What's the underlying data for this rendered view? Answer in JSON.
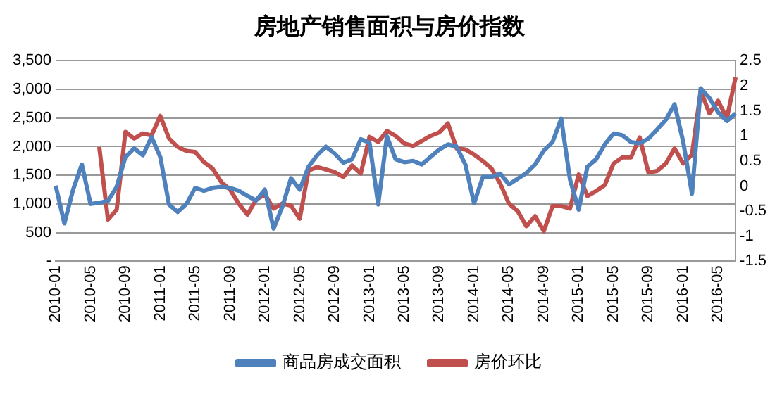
{
  "chart_data": {
    "type": "line",
    "title": "房地产销售面积与房价指数",
    "categories": [
      "2010-01",
      null,
      null,
      null,
      "2010-05",
      null,
      null,
      null,
      "2010-09",
      null,
      null,
      null,
      "2011-01",
      null,
      null,
      null,
      "2011-05",
      null,
      null,
      null,
      "2011-09",
      null,
      null,
      null,
      "2012-01",
      null,
      null,
      null,
      "2012-05",
      null,
      null,
      null,
      "2012-09",
      null,
      null,
      null,
      "2013-01",
      null,
      null,
      null,
      "2013-05",
      null,
      null,
      null,
      "2013-09",
      null,
      null,
      null,
      "2014-01",
      null,
      null,
      null,
      "2014-05",
      null,
      null,
      null,
      "2014-09",
      null,
      null,
      null,
      "2015-01",
      null,
      null,
      null,
      "2015-05",
      null,
      null,
      null,
      "2015-09",
      null,
      null,
      null,
      "2016-01",
      null,
      null,
      null,
      "2016-05",
      null,
      null
    ],
    "series": [
      {
        "name": "商品房成交面积",
        "color": "#4f81bd",
        "values": [
          1320,
          660,
          1250,
          1690,
          1000,
          1020,
          1050,
          1300,
          1820,
          1970,
          1850,
          2170,
          1820,
          990,
          860,
          1000,
          1280,
          1230,
          1280,
          1300,
          1280,
          1230,
          1140,
          1060,
          1250,
          570,
          950,
          1450,
          1250,
          1650,
          1850,
          2000,
          1880,
          1720,
          1780,
          2130,
          2070,
          990,
          2180,
          1780,
          1730,
          1750,
          1690,
          1820,
          1950,
          2040,
          2000,
          1690,
          1010,
          1470,
          1470,
          1530,
          1340,
          1440,
          1540,
          1690,
          1930,
          2080,
          2490,
          1430,
          900,
          1650,
          1780,
          2040,
          2230,
          2200,
          2080,
          2060,
          2140,
          2300,
          2470,
          2740,
          2080,
          1180,
          3020,
          2850,
          2600,
          2450,
          2580
        ]
      },
      {
        "name": "房价环比",
        "color": "#c0504d",
        "axis": "y2",
        "values": [
          null,
          null,
          null,
          null,
          null,
          0.78,
          -0.67,
          -0.47,
          1.08,
          0.95,
          1.05,
          1.01,
          1.4,
          0.95,
          0.78,
          0.7,
          0.68,
          0.48,
          0.35,
          0.08,
          -0.07,
          -0.35,
          -0.57,
          -0.27,
          -0.17,
          -0.45,
          -0.35,
          -0.39,
          -0.65,
          0.31,
          0.38,
          0.33,
          0.28,
          0.18,
          0.41,
          0.25,
          0.98,
          0.88,
          1.1,
          1.0,
          0.85,
          0.8,
          0.9,
          1.0,
          1.07,
          1.25,
          0.75,
          0.73,
          0.63,
          0.5,
          0.35,
          0.05,
          -0.35,
          -0.5,
          -0.8,
          -0.6,
          -0.9,
          -0.4,
          -0.4,
          -0.45,
          0.23,
          -0.2,
          -0.1,
          0.02,
          0.45,
          0.57,
          0.57,
          0.97,
          0.27,
          0.3,
          0.45,
          0.75,
          0.45,
          0.63,
          1.9,
          1.45,
          1.7,
          1.35,
          2.17
        ]
      }
    ],
    "ylim": [
      0,
      3500
    ],
    "yticks": [
      {
        "value": 0,
        "label": "-"
      },
      500,
      {
        "value": 1000,
        "label": "1,000"
      },
      {
        "value": 1500,
        "label": "1,500"
      },
      {
        "value": 2000,
        "label": "2,000"
      },
      {
        "value": 2500,
        "label": "2,500"
      },
      {
        "value": 3000,
        "label": "3,000"
      },
      {
        "value": 3500,
        "label": "3,500"
      }
    ],
    "y2lim": [
      -1.5,
      2.5
    ],
    "y2ticks": [
      -1.5,
      -1,
      -0.5,
      0,
      0.5,
      1,
      1.5,
      2,
      2.5
    ],
    "grid": "y",
    "legend": "bottom",
    "marker": "none",
    "line_style": "solid"
  }
}
